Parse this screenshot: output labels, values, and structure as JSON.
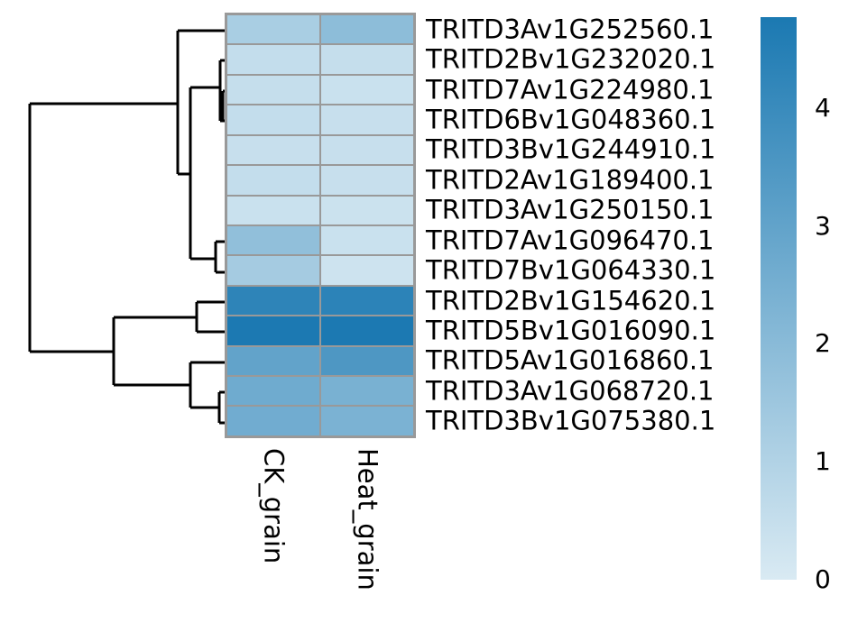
{
  "chart_data": {
    "type": "heatmap",
    "title": "",
    "columns": [
      "CK_grain",
      "Heat_grain"
    ],
    "rows": [
      "TRITD3Av1G252560.1",
      "TRITD2Bv1G232020.1",
      "TRITD7Av1G224980.1",
      "TRITD6Bv1G048360.1",
      "TRITD3Bv1G244910.1",
      "TRITD2Av1G189400.1",
      "TRITD3Av1G250150.1",
      "TRITD7Av1G096470.1",
      "TRITD7Bv1G064330.1",
      "TRITD2Bv1G154620.1",
      "TRITD5Bv1G016090.1",
      "TRITD5Av1G016860.1",
      "TRITD3Av1G068720.1",
      "TRITD3Bv1G075380.1"
    ],
    "values": [
      [
        1.2,
        1.9
      ],
      [
        0.55,
        0.5
      ],
      [
        0.5,
        0.4
      ],
      [
        0.55,
        0.45
      ],
      [
        0.45,
        0.45
      ],
      [
        0.55,
        0.45
      ],
      [
        0.4,
        0.35
      ],
      [
        1.8,
        0.4
      ],
      [
        1.3,
        0.3
      ],
      [
        4.3,
        4.35
      ],
      [
        4.75,
        4.75
      ],
      [
        3.0,
        3.5
      ],
      [
        2.65,
        2.4
      ],
      [
        2.6,
        2.35
      ]
    ],
    "scale": {
      "min": 0,
      "max": 4.77,
      "low_color": "#D9EAF3",
      "high_color": "#1B79B2",
      "legend_ticks": [
        0,
        1,
        2,
        3,
        4
      ],
      "legend_position": "right"
    },
    "grid": {
      "cell_border_color": "#999999"
    },
    "row_dendrogram": {
      "line_color": "#000000",
      "segments": [
        [
          33,
          115,
          197,
          115
        ],
        [
          33,
          115,
          33,
          390
        ],
        [
          33,
          390,
          126,
          390
        ],
        [
          197,
          34,
          197,
          193
        ],
        [
          197,
          34,
          252,
          34
        ],
        [
          197,
          193,
          211,
          193
        ],
        [
          211,
          97,
          211,
          287
        ],
        [
          211,
          97,
          244,
          97
        ],
        [
          244,
          67,
          244,
          134
        ],
        [
          244,
          67,
          252,
          67
        ],
        [
          247,
          101,
          247,
          134
        ],
        [
          247,
          101,
          252,
          101
        ],
        [
          244,
          134,
          252,
          134
        ],
        [
          211,
          287,
          239,
          287
        ],
        [
          239,
          268,
          239,
          302
        ],
        [
          239,
          268,
          252,
          268
        ],
        [
          239,
          302,
          252,
          302
        ],
        [
          126,
          352,
          126,
          427
        ],
        [
          126,
          352,
          218,
          352
        ],
        [
          218,
          335,
          218,
          368
        ],
        [
          218,
          335,
          252,
          335
        ],
        [
          218,
          368,
          252,
          368
        ],
        [
          126,
          427,
          211,
          427
        ],
        [
          211,
          402,
          211,
          452
        ],
        [
          211,
          402,
          252,
          402
        ],
        [
          211,
          452,
          243,
          452
        ],
        [
          243,
          435,
          243,
          469
        ],
        [
          243,
          435,
          252,
          435
        ],
        [
          243,
          469,
          252,
          469
        ]
      ]
    }
  }
}
